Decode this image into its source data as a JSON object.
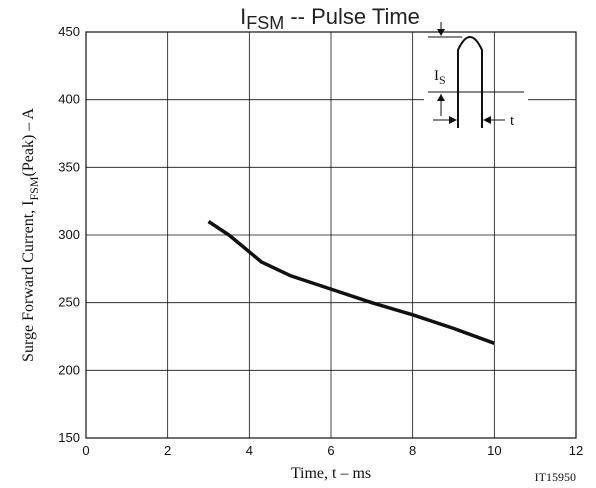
{
  "chart_data": {
    "type": "line",
    "title_main": "I",
    "title_sub": "FSM",
    "title_rest": " -- Pulse Time",
    "xlabel": "Time, t  – ms",
    "ylabel_main": "Surge Forward Current, I",
    "ylabel_sub": "FSM",
    "ylabel_rest": "(Peak)  – A",
    "xlim": [
      0,
      12
    ],
    "ylim": [
      150,
      450
    ],
    "xticks": [
      0,
      2,
      4,
      6,
      8,
      10,
      12
    ],
    "yticks": [
      150,
      200,
      250,
      300,
      350,
      400,
      450
    ],
    "grid": true,
    "series": [
      {
        "x": [
          3.0,
          3.5,
          3.9,
          4.3,
          5.0,
          6.0,
          7.0,
          8.0,
          9.0,
          10.0
        ],
        "y": [
          310,
          300,
          290,
          280,
          270,
          260,
          250,
          241,
          231,
          220
        ],
        "color": "#111111"
      }
    ],
    "inset": {
      "label_main": "I",
      "label_sub": "S",
      "label_t": "t"
    },
    "code": "IT15950"
  }
}
